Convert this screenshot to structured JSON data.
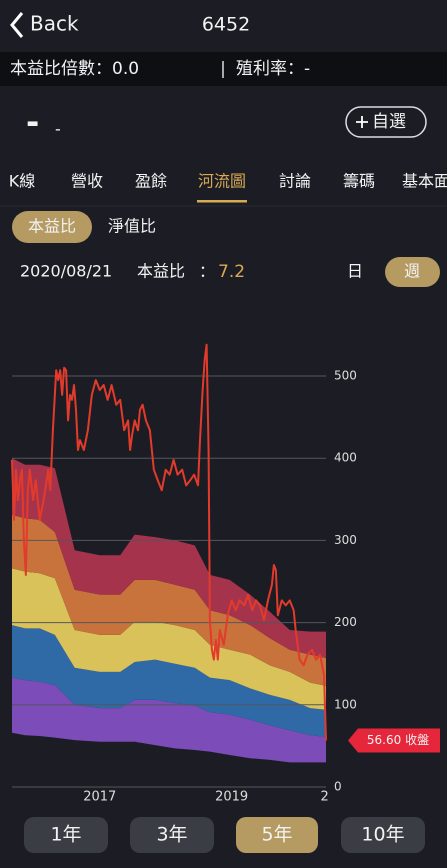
{
  "nav": {
    "back": "Back",
    "title": "6452"
  },
  "info": {
    "pe": "本益比倍數：0.0",
    "yield": "殖利率：-"
  },
  "quote": {
    "price": "-",
    "change": "-",
    "watch": "自選"
  },
  "tabs": [
    "K線",
    "營收",
    "盈餘",
    "河流圖",
    "討論",
    "籌碼",
    "基本面"
  ],
  "active_tab": 3,
  "subtabs": [
    "本益比",
    "淨值比"
  ],
  "stat": {
    "date": "2020/08/21",
    "label": "本益比",
    "sep": "：",
    "value": 7.2
  },
  "freq": [
    "日",
    "週"
  ],
  "ranges": [
    "1年",
    "3年",
    "5年",
    "10年"
  ],
  "chart_data": {
    "type": "line",
    "color": "#e23b2b",
    "x": [
      2015.67,
      2015.7,
      2015.73,
      2015.76,
      2015.79,
      2015.82,
      2015.85,
      2015.88,
      2015.91,
      2015.94,
      2015.99,
      2016.03,
      2016.09,
      2016.15,
      2016.22,
      2016.25,
      2016.29,
      2016.34,
      2016.37,
      2016.4,
      2016.43,
      2016.46,
      2016.49,
      2016.52,
      2016.55,
      2016.58,
      2016.61,
      2016.64,
      2016.67,
      2016.7,
      2016.76,
      2016.82,
      2016.88,
      2016.94,
      2017.0,
      2017.06,
      2017.12,
      2017.18,
      2017.25,
      2017.31,
      2017.37,
      2017.43,
      2017.46,
      2017.49,
      2017.53,
      2017.58,
      2017.61,
      2017.65,
      2017.7,
      2017.76,
      2017.82,
      2017.88,
      2017.94,
      2018.0,
      2018.06,
      2018.12,
      2018.18,
      2018.25,
      2018.31,
      2018.37,
      2018.43,
      2018.49,
      2018.52,
      2018.56,
      2018.59,
      2018.62,
      2018.65,
      2018.67,
      2018.7,
      2018.73,
      2018.76,
      2018.79,
      2018.82,
      2018.88,
      2018.94,
      2019.0,
      2019.06,
      2019.12,
      2019.19,
      2019.25,
      2019.31,
      2019.37,
      2019.43,
      2019.49,
      2019.55,
      2019.61,
      2019.64,
      2019.67,
      2019.7,
      2019.76,
      2019.82,
      2019.88,
      2019.94,
      2019.97,
      2020.03,
      2020.09,
      2020.15,
      2020.22,
      2020.28,
      2020.34,
      2020.4,
      2020.43
    ],
    "values": [
      398,
      325,
      386,
      349,
      373,
      386,
      300,
      258,
      361,
      386,
      349,
      373,
      325,
      349,
      386,
      361,
      434,
      507,
      495,
      507,
      477,
      510,
      507,
      446,
      477,
      471,
      489,
      459,
      410,
      422,
      410,
      434,
      477,
      495,
      483,
      489,
      471,
      489,
      465,
      471,
      434,
      446,
      410,
      428,
      446,
      434,
      459,
      465,
      446,
      434,
      386,
      373,
      361,
      386,
      380,
      398,
      380,
      386,
      367,
      373,
      380,
      367,
      422,
      483,
      519,
      538,
      410,
      203,
      167,
      155,
      179,
      155,
      191,
      173,
      209,
      227,
      215,
      227,
      221,
      234,
      215,
      227,
      221,
      203,
      227,
      246,
      270,
      264,
      209,
      227,
      221,
      227,
      215,
      191,
      155,
      148,
      161,
      167,
      155,
      161,
      136,
      56.6
    ],
    "close_label": "56.60 收盤",
    "river": {
      "x": [
        2015.67,
        2015.87,
        2016.09,
        2016.32,
        2016.62,
        2017.0,
        2017.31,
        2017.53,
        2017.84,
        2018.14,
        2018.44,
        2018.67,
        2018.97,
        2019.28,
        2019.58,
        2019.88,
        2020.19,
        2020.43
      ],
      "boundaries": [
        [
          66,
          63,
          62,
          60,
          57,
          55,
          55,
          55,
          51,
          47,
          45,
          43,
          39,
          35,
          33,
          30,
          30,
          30
        ],
        [
          133,
          130,
          128,
          124,
          100,
          96,
          96,
          106,
          106,
          102,
          99,
          91,
          88,
          82,
          75,
          69,
          63,
          61
        ],
        [
          197,
          193,
          193,
          185,
          145,
          140,
          140,
          152,
          155,
          150,
          145,
          133,
          130,
          120,
          112,
          106,
          96,
          94
        ],
        [
          266,
          262,
          260,
          254,
          191,
          185,
          185,
          201,
          201,
          197,
          191,
          173,
          167,
          161,
          148,
          140,
          127,
          123
        ],
        [
          331,
          327,
          325,
          310,
          240,
          234,
          234,
          252,
          252,
          246,
          240,
          215,
          209,
          197,
          181,
          167,
          161,
          157
        ],
        [
          400,
          392,
          392,
          388,
          288,
          282,
          282,
          307,
          304,
          300,
          294,
          258,
          252,
          234,
          213,
          191,
          189,
          189
        ]
      ],
      "colors": [
        "#7c4cb8",
        "#2f6aa6",
        "#d9c25a",
        "#c9733c",
        "#a5334c"
      ]
    },
    "xlim": [
      2015.67,
      2020.43
    ],
    "ylim": [
      0,
      550
    ],
    "xticks": [
      2017,
      2019,
      {
        "value": 2020.41,
        "label": "2"
      }
    ],
    "yticks": [
      0,
      100,
      200,
      300,
      400,
      500
    ],
    "grid": true
  }
}
